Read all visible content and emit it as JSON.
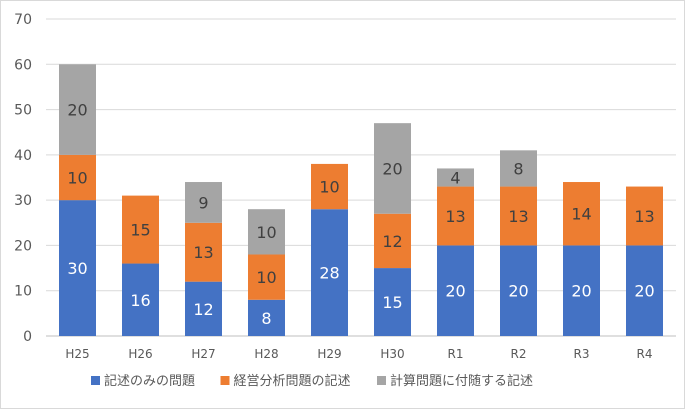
{
  "chart_data": {
    "type": "bar",
    "stacked": true,
    "title": "",
    "xlabel": "",
    "ylabel": "",
    "ylim": [
      0,
      70
    ],
    "yticks": [
      0,
      10,
      20,
      30,
      40,
      50,
      60,
      70
    ],
    "grid": true,
    "legend_position": "bottom",
    "categories": [
      "H25",
      "H26",
      "H27",
      "H28",
      "H29",
      "H30",
      "R1",
      "R2",
      "R3",
      "R4"
    ],
    "series": [
      {
        "name": "記述のみの問題",
        "color": "#4472C4",
        "values": [
          30,
          16,
          12,
          8,
          28,
          15,
          20,
          20,
          20,
          20
        ]
      },
      {
        "name": "経営分析問題の記述",
        "color": "#ED7D31",
        "values": [
          10,
          15,
          13,
          10,
          10,
          12,
          13,
          13,
          14,
          13
        ]
      },
      {
        "name": "計算問題に付随する記述",
        "color": "#A5A5A5",
        "values": [
          20,
          0,
          9,
          10,
          0,
          20,
          4,
          8,
          0,
          0
        ]
      }
    ]
  }
}
